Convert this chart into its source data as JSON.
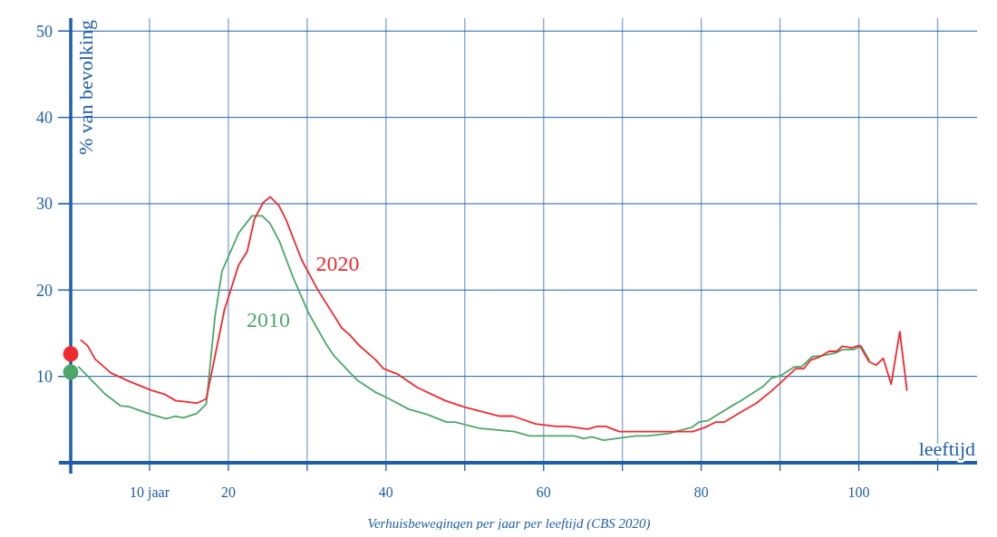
{
  "chart_data": {
    "type": "line",
    "xlabel": "leeftijd",
    "ylabel": "% van bevolking",
    "annotations": [
      "Verhuisbewegingen per jaar per leeftijd (CBS 2020)"
    ],
    "xlim": [
      -1.5,
      115
    ],
    "ylim": [
      0,
      51.5
    ],
    "xticks": [
      {
        "value": 10,
        "label": "10 jaar"
      },
      20,
      {
        "value": 30,
        "label": null
      },
      40,
      {
        "value": 50,
        "label": null
      },
      60,
      {
        "value": 70,
        "label": null
      },
      80,
      {
        "value": 90,
        "label": null
      },
      100,
      {
        "value": 110,
        "label": null
      }
    ],
    "yticks": [
      10,
      20,
      30,
      40,
      50
    ],
    "grid": true,
    "marker": "none",
    "line_style": "solid",
    "series": [
      {
        "name": "2010",
        "color": "#4ea76a",
        "x": [
          1.0,
          4.3,
          6.3,
          7.4,
          10.2,
          12.1,
          13.3,
          14.3,
          16,
          17.2,
          18.3,
          19.2,
          21.3,
          23,
          24.3,
          25.3,
          26.5,
          28.2,
          30.2,
          32.5,
          33.4,
          36.3,
          38.6,
          40.2,
          42.9,
          45.2,
          47.7,
          48.8,
          51.8,
          56.3,
          58.2,
          63.9,
          65.1,
          66.1,
          67.6,
          71.7,
          73.2,
          75.9,
          78.8,
          79.7,
          80.9,
          84.1,
          84.9,
          87.8,
          88.9,
          90.1,
          91.8,
          92.7,
          94.1,
          95.3,
          97,
          97.9,
          99.3,
          100.3,
          101.3
        ],
        "values": [
          11.1,
          8.0,
          6.6,
          6.5,
          5.6,
          5.1,
          5.4,
          5.2,
          5.7,
          6.8,
          16.9,
          22.2,
          26.6,
          28.6,
          28.6,
          27.7,
          25.6,
          21.5,
          17.3,
          13.6,
          12.4,
          9.6,
          8.2,
          7.5,
          6.2,
          5.6,
          4.7,
          4.7,
          4.0,
          3.6,
          3.1,
          3.1,
          2.8,
          3.0,
          2.6,
          3.1,
          3.1,
          3.4,
          4.1,
          4.7,
          4.9,
          6.7,
          7.1,
          8.8,
          9.8,
          10.1,
          11.1,
          11.1,
          12.3,
          12.4,
          12.7,
          13.1,
          13.1,
          13.5,
          11.9
        ]
      },
      {
        "name": "2020",
        "color": "#ee2a2f",
        "x": [
          1.3,
          2.1,
          3.1,
          5.1,
          7.5,
          10.2,
          12,
          13.3,
          16,
          17.2,
          19.5,
          21.3,
          22.4,
          23.3,
          24.4,
          25.3,
          26.4,
          27.3,
          29.3,
          31.3,
          34.4,
          35.4,
          36.7,
          38.6,
          39.7,
          41.4,
          44,
          47.5,
          50.1,
          54.4,
          56.1,
          59,
          61.6,
          63,
          65.6,
          66.8,
          67.9,
          69.6,
          71.7,
          78.9,
          80.5,
          81.8,
          82.9,
          85.1,
          87,
          88.9,
          90.1,
          92,
          93,
          93.9,
          94.9,
          96.2,
          97.2,
          97.9,
          99.1,
          100.1,
          101.3,
          102.2,
          103.1,
          104.1,
          105.2,
          106.1
        ],
        "values": [
          14.2,
          13.6,
          12.0,
          10.4,
          9.4,
          8.4,
          7.9,
          7.2,
          6.9,
          7.4,
          17.7,
          22.9,
          24.5,
          28.2,
          30.1,
          30.8,
          29.8,
          28.2,
          23.5,
          20.1,
          15.6,
          14.8,
          13.5,
          12.0,
          10.9,
          10.3,
          8.7,
          7.2,
          6.4,
          5.4,
          5.4,
          4.5,
          4.2,
          4.2,
          3.9,
          4.2,
          4.2,
          3.6,
          3.6,
          3.6,
          4.1,
          4.7,
          4.7,
          5.9,
          6.9,
          8.3,
          9.3,
          10.9,
          10.9,
          11.9,
          12.2,
          12.9,
          12.9,
          13.5,
          13.3,
          13.6,
          11.7,
          11.3,
          12.1,
          9.1,
          15.2,
          8.4
        ]
      },
      {
        "type": "scatter",
        "color": "#4ea76a",
        "x": [
          0
        ],
        "values": [
          10.5
        ],
        "marker": "circle"
      },
      {
        "type": "scatter",
        "color": "#ee2a2f",
        "x": [
          0
        ],
        "values": [
          12.6
        ],
        "marker": "circle"
      }
    ]
  }
}
